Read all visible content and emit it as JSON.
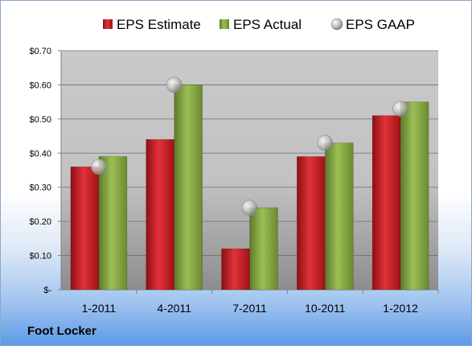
{
  "caption": "Foot Locker",
  "chart_data": {
    "type": "bar",
    "categories": [
      "1-2011",
      "4-2011",
      "7-2011",
      "10-2011",
      "1-2012"
    ],
    "series": [
      {
        "name": "EPS Estimate",
        "kind": "bar",
        "color": "#c0191d",
        "values": [
          0.36,
          0.44,
          0.12,
          0.39,
          0.51
        ]
      },
      {
        "name": "EPS Actual",
        "kind": "bar",
        "color": "#7c9c3a",
        "values": [
          0.39,
          0.6,
          0.24,
          0.43,
          0.55
        ]
      },
      {
        "name": "EPS GAAP",
        "kind": "marker",
        "color": "#a6a6a6",
        "values": [
          0.36,
          0.6,
          0.24,
          0.43,
          0.53
        ]
      }
    ],
    "yticks": [
      0,
      0.1,
      0.2,
      0.3,
      0.4,
      0.5,
      0.6,
      0.7
    ],
    "ytick_labels": [
      "$-",
      "$0.10",
      "$0.20",
      "$0.30",
      "$0.40",
      "$0.50",
      "$0.60",
      "$0.70"
    ],
    "ylim": [
      0,
      0.7
    ],
    "grid": true,
    "legend_position": "top"
  }
}
